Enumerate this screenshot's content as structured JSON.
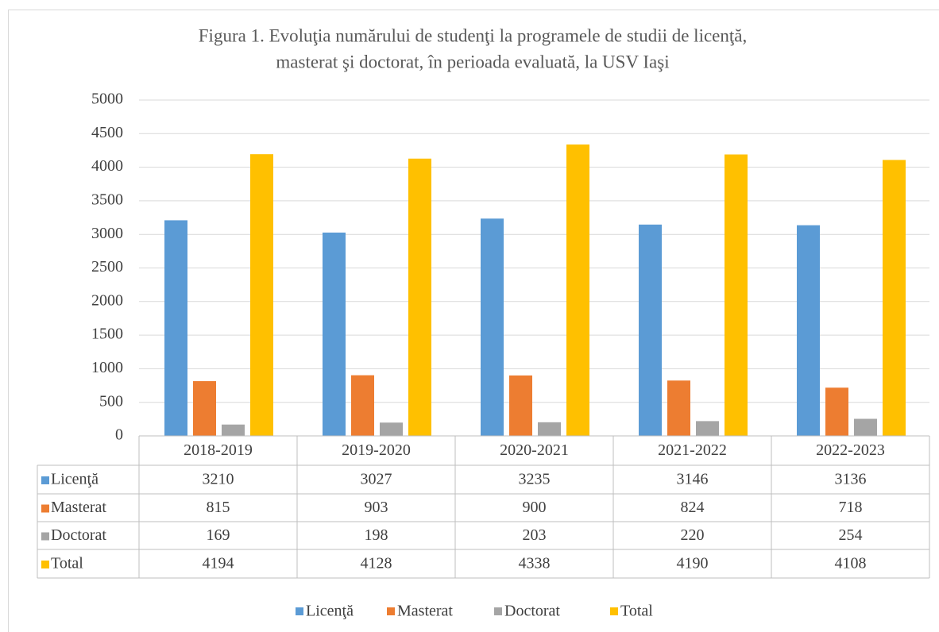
{
  "chart_data": {
    "type": "bar",
    "title": "Figura 1. Evoluţia numărului de studenţi la programele de studii de licenţă,",
    "subtitle": "masterat şi doctorat, în perioada evaluată, la USV Iaşi",
    "categories": [
      "2018-2019",
      "2019-2020",
      "2020-2021",
      "2021-2022",
      "2022-2023"
    ],
    "series": [
      {
        "name": "Licenţă",
        "color": "#5b9bd5",
        "values": [
          3210,
          3027,
          3235,
          3146,
          3136
        ]
      },
      {
        "name": "Masterat",
        "color": "#ed7d31",
        "values": [
          815,
          903,
          900,
          824,
          718
        ]
      },
      {
        "name": "Doctorat",
        "color": "#a5a5a5",
        "values": [
          169,
          198,
          203,
          220,
          254
        ]
      },
      {
        "name": "Total",
        "color": "#ffc000",
        "values": [
          4194,
          4128,
          4338,
          4190,
          4108
        ]
      }
    ],
    "ylim": [
      0,
      5000
    ],
    "yticks": [
      0,
      500,
      1000,
      1500,
      2000,
      2500,
      3000,
      3500,
      4000,
      4500,
      5000
    ],
    "grid": true,
    "legend": "bottom",
    "data_table": true
  }
}
